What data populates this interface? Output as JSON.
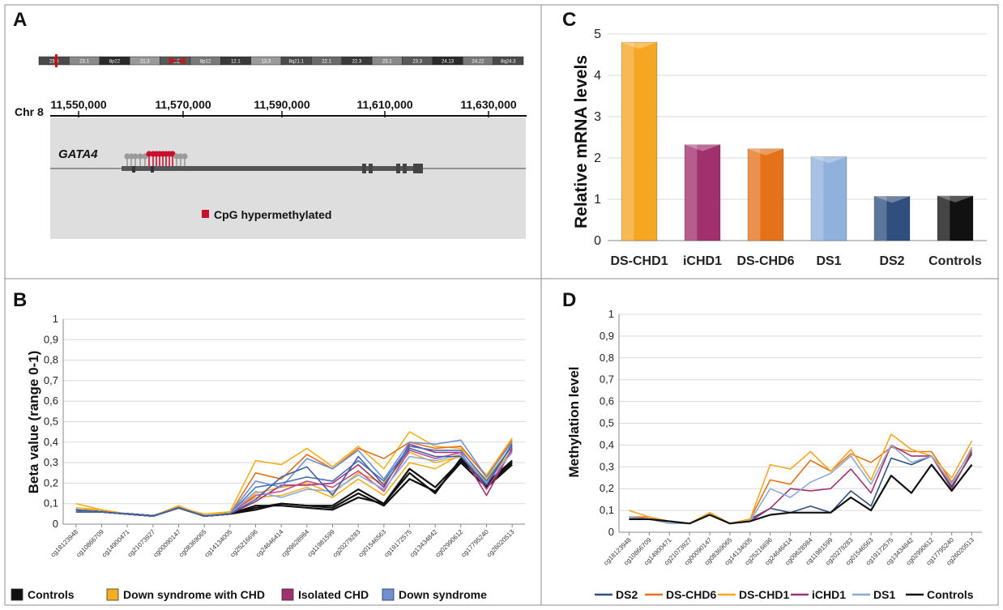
{
  "panel_labels": {
    "a": "A",
    "b": "B",
    "c": "C",
    "d": "D"
  },
  "panel_a": {
    "chromosome": "Chr 8",
    "positions": [
      "11,550,000",
      "11,570,000",
      "11,590,000",
      "11,610,000",
      "11,630,000"
    ],
    "gene": "GATA4",
    "legend": "CpG hypermethylated",
    "ideogram_bands": [
      "23.3",
      "23.1",
      "8p22",
      "21.3",
      "21.2",
      "8p12",
      "12.1",
      "13.3",
      "8q21.1",
      "22.1",
      "22.3",
      "23.1",
      "23.3",
      "24.13",
      "24.22",
      "8q24.3"
    ],
    "colors": {
      "hypermethylated": "#c8102e",
      "unmethylated": "#9a9a9a",
      "track_bg": "#dedede"
    }
  },
  "chart_data": [
    {
      "id": "C",
      "type": "bar",
      "categories": [
        "DS-CHD1",
        "iCHD1",
        "DS-CHD6",
        "DS1",
        "DS2",
        "Controls"
      ],
      "values": [
        4.8,
        2.32,
        2.22,
        2.03,
        1.07,
        1.08
      ],
      "colors": [
        "#f5a623",
        "#a0306e",
        "#e3721b",
        "#8fb1dc",
        "#2f4f7f",
        "#111111"
      ],
      "ylabel": "Relative mRNA levels",
      "ylim": [
        0,
        5
      ],
      "yticks": [
        "0",
        "1",
        "2",
        "3",
        "4",
        "5"
      ],
      "grid": true
    },
    {
      "id": "B",
      "type": "line",
      "ylabel": "Beta value (range 0-1)",
      "ylim": [
        0,
        1
      ],
      "yticks": [
        "0",
        "0,1",
        "0,2",
        "0,3",
        "0,4",
        "0,5",
        "0,6",
        "0,7",
        "0,8",
        "0,9",
        "1"
      ],
      "categories": [
        "cg18123948",
        "cg10866709",
        "cg14900471",
        "cg21073927",
        "cg00090147",
        "cg08369065",
        "cg14134005",
        "cg25216696",
        "cg24646414",
        "cg09628984",
        "cg11981599",
        "cg20279283",
        "cg01546563",
        "cg19172575",
        "cg13434842",
        "cg02990612",
        "cg17795240",
        "cg26020513"
      ],
      "legend": [
        {
          "name": "Controls",
          "color": "#111111"
        },
        {
          "name": "Down syndrome with CHD",
          "color": "#f2b01e"
        },
        {
          "name": "Isolated CHD",
          "color": "#a0306e"
        },
        {
          "name": "Down syndrome",
          "color": "#6f8fd1"
        }
      ],
      "series": [
        {
          "color": "#111111",
          "values": [
            0.07,
            0.06,
            0.05,
            0.04,
            0.08,
            0.04,
            0.05,
            0.07,
            0.1,
            0.09,
            0.08,
            0.15,
            0.09,
            0.22,
            0.16,
            0.3,
            0.18,
            0.29
          ]
        },
        {
          "color": "#111111",
          "values": [
            0.07,
            0.06,
            0.05,
            0.04,
            0.08,
            0.04,
            0.05,
            0.09,
            0.09,
            0.08,
            0.07,
            0.13,
            0.1,
            0.25,
            0.15,
            0.32,
            0.19,
            0.3
          ]
        },
        {
          "color": "#111111",
          "values": [
            0.06,
            0.06,
            0.05,
            0.04,
            0.08,
            0.04,
            0.05,
            0.08,
            0.1,
            0.09,
            0.09,
            0.17,
            0.1,
            0.27,
            0.18,
            0.31,
            0.2,
            0.31
          ]
        },
        {
          "color": "#f2b01e",
          "values": [
            0.1,
            0.07,
            0.05,
            0.04,
            0.09,
            0.04,
            0.06,
            0.31,
            0.29,
            0.37,
            0.28,
            0.38,
            0.27,
            0.45,
            0.38,
            0.37,
            0.24,
            0.42
          ]
        },
        {
          "color": "#f2b01e",
          "values": [
            0.08,
            0.07,
            0.05,
            0.04,
            0.08,
            0.04,
            0.05,
            0.15,
            0.18,
            0.2,
            0.15,
            0.25,
            0.2,
            0.35,
            0.3,
            0.33,
            0.22,
            0.38
          ]
        },
        {
          "color": "#e3721b",
          "values": [
            0.07,
            0.06,
            0.05,
            0.04,
            0.08,
            0.04,
            0.05,
            0.25,
            0.22,
            0.34,
            0.27,
            0.37,
            0.32,
            0.4,
            0.37,
            0.38,
            0.23,
            0.41
          ]
        },
        {
          "color": "#f2b01e",
          "values": [
            0.07,
            0.07,
            0.05,
            0.04,
            0.08,
            0.05,
            0.06,
            0.13,
            0.14,
            0.18,
            0.13,
            0.22,
            0.14,
            0.3,
            0.27,
            0.34,
            0.21,
            0.36
          ]
        },
        {
          "color": "#a0306e",
          "values": [
            0.07,
            0.06,
            0.05,
            0.04,
            0.08,
            0.04,
            0.05,
            0.11,
            0.19,
            0.19,
            0.2,
            0.29,
            0.18,
            0.39,
            0.35,
            0.35,
            0.14,
            0.37
          ]
        },
        {
          "color": "#c24a8a",
          "values": [
            0.07,
            0.06,
            0.05,
            0.04,
            0.08,
            0.04,
            0.05,
            0.14,
            0.16,
            0.21,
            0.18,
            0.26,
            0.16,
            0.36,
            0.32,
            0.35,
            0.17,
            0.36
          ]
        },
        {
          "color": "#6f8fd1",
          "values": [
            0.07,
            0.06,
            0.05,
            0.04,
            0.08,
            0.04,
            0.05,
            0.21,
            0.18,
            0.32,
            0.27,
            0.36,
            0.22,
            0.4,
            0.39,
            0.41,
            0.23,
            0.4
          ]
        },
        {
          "color": "#4a6fb8",
          "values": [
            0.06,
            0.06,
            0.05,
            0.04,
            0.08,
            0.04,
            0.05,
            0.18,
            0.2,
            0.23,
            0.21,
            0.31,
            0.21,
            0.38,
            0.36,
            0.36,
            0.21,
            0.38
          ]
        },
        {
          "color": "#8aa8e0",
          "values": [
            0.07,
            0.06,
            0.05,
            0.04,
            0.08,
            0.04,
            0.05,
            0.16,
            0.13,
            0.17,
            0.16,
            0.24,
            0.17,
            0.33,
            0.31,
            0.34,
            0.2,
            0.35
          ]
        },
        {
          "color": "#3d5fa8",
          "values": [
            0.07,
            0.06,
            0.05,
            0.04,
            0.08,
            0.04,
            0.05,
            0.12,
            0.23,
            0.28,
            0.14,
            0.33,
            0.19,
            0.37,
            0.33,
            0.33,
            0.19,
            0.39
          ]
        }
      ]
    },
    {
      "id": "D",
      "type": "line",
      "ylabel": "Methylation level",
      "ylim": [
        0,
        1
      ],
      "yticks": [
        "0",
        "0,1",
        "0,2",
        "0,3",
        "0,4",
        "0,5",
        "0,6",
        "0,7",
        "0,8",
        "0,9",
        "1"
      ],
      "categories": [
        "cg18123948",
        "cg10866709",
        "cg14900471",
        "cg21073927",
        "cg00090147",
        "cg08369065",
        "cg14134005",
        "cg25216696",
        "cg24646414",
        "cg09628984",
        "cg11981599",
        "cg20279283",
        "cg01546563",
        "cg19172575",
        "cg13434842",
        "cg02990612",
        "cg17795240",
        "cg26020513"
      ],
      "series": [
        {
          "name": "DS2",
          "color": "#2f4f7f",
          "values": [
            0.07,
            0.06,
            0.05,
            0.04,
            0.08,
            0.04,
            0.06,
            0.11,
            0.09,
            0.12,
            0.09,
            0.19,
            0.12,
            0.34,
            0.31,
            0.35,
            0.21,
            0.36
          ]
        },
        {
          "name": "DS-CHD6",
          "color": "#e3721b",
          "values": [
            0.07,
            0.07,
            0.05,
            0.04,
            0.09,
            0.04,
            0.06,
            0.24,
            0.22,
            0.33,
            0.28,
            0.36,
            0.32,
            0.39,
            0.37,
            0.37,
            0.23,
            0.38
          ]
        },
        {
          "name": "DS-CHD1",
          "color": "#f5a623",
          "values": [
            0.1,
            0.07,
            0.05,
            0.04,
            0.09,
            0.04,
            0.06,
            0.31,
            0.29,
            0.37,
            0.28,
            0.38,
            0.24,
            0.45,
            0.38,
            0.35,
            0.25,
            0.42
          ]
        },
        {
          "name": "iCHD1",
          "color": "#a0306e",
          "values": [
            0.07,
            0.06,
            0.05,
            0.04,
            0.08,
            0.04,
            0.05,
            0.11,
            0.2,
            0.19,
            0.2,
            0.29,
            0.18,
            0.4,
            0.35,
            0.35,
            0.2,
            0.37
          ]
        },
        {
          "name": "DS1",
          "color": "#8fa8d6",
          "values": [
            0.07,
            0.06,
            0.04,
            0.04,
            0.08,
            0.04,
            0.05,
            0.2,
            0.16,
            0.23,
            0.27,
            0.35,
            0.22,
            0.4,
            0.32,
            0.35,
            0.22,
            0.39
          ]
        },
        {
          "name": "Controls",
          "color": "#111111",
          "values": [
            0.06,
            0.06,
            0.05,
            0.04,
            0.08,
            0.04,
            0.05,
            0.08,
            0.09,
            0.09,
            0.09,
            0.16,
            0.1,
            0.26,
            0.18,
            0.31,
            0.19,
            0.31
          ]
        }
      ]
    }
  ]
}
